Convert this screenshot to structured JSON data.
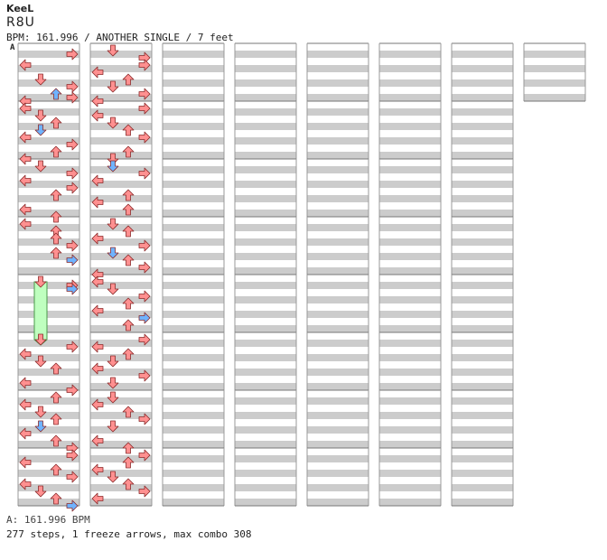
{
  "header": {
    "artist": "KeeL",
    "title": "R8U",
    "info": "BPM: 161.996 / ANOTHER SINGLE / 7 feet"
  },
  "marker": {
    "label": "A"
  },
  "footer": {
    "bpm_line": "A: 161.996 BPM",
    "stats_line": "277 steps, 1 freeze arrows, max combo 308"
  },
  "colors": {
    "stripe": "#cccccc",
    "quarter": "#ff9090",
    "eighth": "#6fb3ff",
    "sixteenth": "#ff9cff",
    "freeze": "#bfffbf"
  },
  "chart": {
    "lanes": [
      "left",
      "down",
      "up",
      "right"
    ],
    "columns": 8,
    "measures_per_column": 8,
    "total_measures": 57,
    "steps": [
      [
        0,
        1,
        3,
        1
      ],
      [
        0,
        4,
        0,
        1
      ],
      [
        0,
        8,
        1,
        1
      ],
      [
        0,
        10,
        3,
        1
      ],
      [
        0,
        12,
        2,
        2
      ],
      [
        0,
        13,
        3,
        1
      ],
      [
        0,
        14,
        0,
        1
      ],
      [
        1,
        0,
        0,
        1
      ],
      [
        1,
        2,
        1,
        1
      ],
      [
        1,
        4,
        2,
        1
      ],
      [
        1,
        6,
        1,
        2
      ],
      [
        1,
        8,
        0,
        1
      ],
      [
        1,
        10,
        3,
        1
      ],
      [
        1,
        12,
        2,
        1
      ],
      [
        1,
        14,
        0,
        1
      ],
      [
        2,
        0,
        1,
        1
      ],
      [
        2,
        2,
        3,
        1
      ],
      [
        2,
        4,
        0,
        1
      ],
      [
        2,
        6,
        3,
        1
      ],
      [
        2,
        8,
        2,
        1
      ],
      [
        2,
        12,
        0,
        1
      ],
      [
        2,
        14,
        2,
        1
      ],
      [
        3,
        0,
        0,
        1
      ],
      [
        3,
        2,
        2,
        1
      ],
      [
        3,
        4,
        2,
        1
      ],
      [
        3,
        6,
        3,
        1
      ],
      [
        3,
        8,
        2,
        1
      ],
      [
        3,
        10,
        3,
        2
      ],
      [
        4,
        0,
        1,
        1
      ],
      [
        4,
        1,
        3,
        1
      ],
      [
        4,
        2,
        3,
        2
      ],
      [
        5,
        0,
        1,
        1
      ],
      [
        5,
        2,
        3,
        1
      ],
      [
        5,
        4,
        0,
        1
      ],
      [
        5,
        6,
        1,
        1
      ],
      [
        5,
        8,
        2,
        1
      ],
      [
        5,
        12,
        0,
        1
      ],
      [
        5,
        14,
        3,
        1
      ],
      [
        6,
        0,
        2,
        1
      ],
      [
        6,
        2,
        0,
        1
      ],
      [
        6,
        4,
        1,
        1
      ],
      [
        6,
        6,
        2,
        1
      ],
      [
        6,
        8,
        1,
        2
      ],
      [
        6,
        10,
        0,
        1
      ],
      [
        6,
        12,
        2,
        1
      ],
      [
        6,
        14,
        3,
        1
      ],
      [
        7,
        0,
        3,
        1
      ],
      [
        7,
        2,
        0,
        1
      ],
      [
        7,
        4,
        2,
        1
      ],
      [
        7,
        6,
        3,
        1
      ],
      [
        7,
        8,
        0,
        1
      ],
      [
        7,
        10,
        1,
        1
      ],
      [
        7,
        12,
        2,
        1
      ],
      [
        7,
        14,
        3,
        2
      ],
      [
        8,
        0,
        1,
        1
      ],
      [
        8,
        2,
        3,
        1
      ],
      [
        8,
        4,
        3,
        1
      ],
      [
        8,
        6,
        0,
        1
      ],
      [
        8,
        8,
        2,
        1
      ],
      [
        8,
        10,
        1,
        1
      ],
      [
        8,
        12,
        3,
        1
      ],
      [
        8,
        14,
        0,
        1
      ],
      [
        9,
        0,
        3,
        1
      ],
      [
        9,
        2,
        0,
        1
      ],
      [
        9,
        4,
        1,
        1
      ],
      [
        9,
        6,
        2,
        1
      ],
      [
        9,
        8,
        3,
        1
      ],
      [
        9,
        12,
        2,
        1
      ],
      [
        9,
        14,
        1,
        1
      ],
      [
        10,
        0,
        1,
        2
      ],
      [
        10,
        2,
        3,
        1
      ],
      [
        10,
        4,
        0,
        1
      ],
      [
        10,
        8,
        2,
        1
      ],
      [
        10,
        10,
        0,
        1
      ],
      [
        10,
        12,
        2,
        1
      ],
      [
        11,
        0,
        1,
        1
      ],
      [
        11,
        2,
        2,
        1
      ],
      [
        11,
        4,
        0,
        1
      ],
      [
        11,
        6,
        3,
        1
      ],
      [
        11,
        8,
        1,
        2
      ],
      [
        11,
        10,
        2,
        1
      ],
      [
        11,
        12,
        3,
        1
      ],
      [
        11,
        14,
        0,
        1
      ],
      [
        12,
        0,
        0,
        1
      ],
      [
        12,
        2,
        1,
        1
      ],
      [
        12,
        4,
        3,
        1
      ],
      [
        12,
        6,
        2,
        1
      ],
      [
        12,
        8,
        0,
        1
      ],
      [
        12,
        10,
        3,
        2
      ],
      [
        12,
        12,
        2,
        1
      ],
      [
        13,
        0,
        3,
        1
      ],
      [
        13,
        2,
        0,
        1
      ],
      [
        13,
        4,
        2,
        1
      ],
      [
        13,
        6,
        1,
        1
      ],
      [
        13,
        8,
        0,
        1
      ],
      [
        13,
        10,
        3,
        1
      ],
      [
        13,
        12,
        1,
        1
      ],
      [
        14,
        0,
        1,
        1
      ],
      [
        14,
        2,
        0,
        1
      ],
      [
        14,
        4,
        2,
        1
      ],
      [
        14,
        6,
        3,
        1
      ],
      [
        14,
        8,
        1,
        1
      ],
      [
        14,
        12,
        0,
        1
      ],
      [
        14,
        14,
        2,
        1
      ],
      [
        15,
        0,
        3,
        1
      ],
      [
        15,
        2,
        2,
        1
      ],
      [
        15,
        4,
        0,
        1
      ],
      [
        15,
        6,
        1,
        1
      ],
      [
        15,
        8,
        2,
        1
      ],
      [
        15,
        10,
        3,
        1
      ],
      [
        15,
        12,
        0,
        1
      ]
    ],
    "freeze": [
      [
        4,
        0,
        1,
        4
      ]
    ]
  }
}
